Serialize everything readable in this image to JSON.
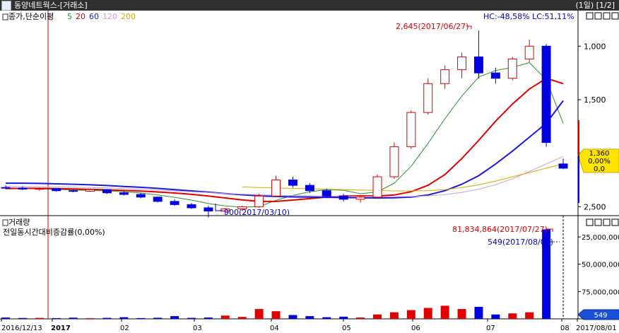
{
  "window": {
    "title": "동양네트웍스-[거래소]",
    "page_info": "(1일) [1/2]"
  },
  "price_panel": {
    "legend": {
      "label": "종가,단순이평",
      "ma_labels": [
        {
          "text": "5",
          "color": "#2f8f2f"
        },
        {
          "text": "20",
          "color": "#dd0000"
        },
        {
          "text": "60",
          "color": "#1a1ad8"
        },
        {
          "text": "120",
          "color": "#c8a0e0"
        },
        {
          "text": "200",
          "color": "#d8a800"
        }
      ]
    },
    "hc_lc": "HC:-48,58%  LC:51,11%",
    "high_annotation": "2,645(2017/06/27)",
    "low_annotation": "900(2017/03/10)",
    "current_box": [
      "1,360",
      "0,00%",
      "0,0"
    ],
    "y_ticks": [
      "2,500",
      "2,000",
      "1,500",
      "1,000"
    ]
  },
  "volume_panel": {
    "title": "거래량",
    "subtitle": "전일동시간대비증감률(0,00%)",
    "max_annotation": "81,834,864(2017/07/27)",
    "last_annotation": "549(2017/08/01)",
    "y_ticks": [
      "75,000,000",
      "50,000,000",
      "25,000,000"
    ],
    "current_box": "549"
  },
  "x_axis": {
    "labels": [
      "2016/12/13",
      "2017",
      "02",
      "03",
      "04",
      "05",
      "06",
      "07",
      "08",
      "2017/08/01"
    ]
  },
  "colors": {
    "up": "#e00000",
    "down": "#0000e0",
    "bg": "#ffffff",
    "axis": "#000000"
  },
  "chart_data": {
    "type": "candlestick",
    "price_axis": {
      "ylim": [
        950,
        2700
      ],
      "ticks": [
        1000,
        1500,
        2000,
        2500
      ]
    },
    "candles": [
      {
        "date": "2016-12-13",
        "open": 1180,
        "high": 1200,
        "low": 1165,
        "close": 1175
      },
      {
        "date": "2016-12-20",
        "open": 1175,
        "high": 1190,
        "low": 1155,
        "close": 1165
      },
      {
        "date": "2016-12-27",
        "open": 1165,
        "high": 1180,
        "low": 1150,
        "close": 1170
      },
      {
        "date": "2017-01-03",
        "open": 1170,
        "high": 1175,
        "low": 1140,
        "close": 1150
      },
      {
        "date": "2017-01-10",
        "open": 1150,
        "high": 1160,
        "low": 1135,
        "close": 1145
      },
      {
        "date": "2017-01-17",
        "open": 1145,
        "high": 1170,
        "low": 1140,
        "close": 1160
      },
      {
        "date": "2017-01-24",
        "open": 1160,
        "high": 1165,
        "low": 1120,
        "close": 1130
      },
      {
        "date": "2017-01-31",
        "open": 1130,
        "high": 1145,
        "low": 1105,
        "close": 1115
      },
      {
        "date": "2017-02-07",
        "open": 1115,
        "high": 1130,
        "low": 1080,
        "close": 1090
      },
      {
        "date": "2017-02-14",
        "open": 1090,
        "high": 1095,
        "low": 1040,
        "close": 1050
      },
      {
        "date": "2017-02-21",
        "open": 1050,
        "high": 1070,
        "low": 1010,
        "close": 1020
      },
      {
        "date": "2017-02-28",
        "open": 1020,
        "high": 1035,
        "low": 980,
        "close": 990
      },
      {
        "date": "2017-03-07",
        "open": 990,
        "high": 1010,
        "low": 900,
        "close": 960
      },
      {
        "date": "2017-03-14",
        "open": 960,
        "high": 990,
        "low": 930,
        "close": 980
      },
      {
        "date": "2017-03-21",
        "open": 980,
        "high": 1010,
        "low": 960,
        "close": 1000
      },
      {
        "date": "2017-03-28",
        "open": 1000,
        "high": 1120,
        "low": 990,
        "close": 1100
      },
      {
        "date": "2017-04-04",
        "open": 1100,
        "high": 1290,
        "low": 1090,
        "close": 1250
      },
      {
        "date": "2017-04-11",
        "open": 1250,
        "high": 1280,
        "low": 1180,
        "close": 1200
      },
      {
        "date": "2017-04-18",
        "open": 1200,
        "high": 1220,
        "low": 1130,
        "close": 1150
      },
      {
        "date": "2017-04-25",
        "open": 1150,
        "high": 1170,
        "low": 1080,
        "close": 1100
      },
      {
        "date": "2017-05-02",
        "open": 1100,
        "high": 1120,
        "low": 1050,
        "close": 1070
      },
      {
        "date": "2017-05-09",
        "open": 1070,
        "high": 1100,
        "low": 1040,
        "close": 1090
      },
      {
        "date": "2017-05-16",
        "open": 1090,
        "high": 1300,
        "low": 1080,
        "close": 1280
      },
      {
        "date": "2017-05-23",
        "open": 1280,
        "high": 1600,
        "low": 1260,
        "close": 1560
      },
      {
        "date": "2017-05-30",
        "open": 1560,
        "high": 1900,
        "low": 1540,
        "close": 1880
      },
      {
        "date": "2017-06-06",
        "open": 1880,
        "high": 2200,
        "low": 1860,
        "close": 2150
      },
      {
        "date": "2017-06-13",
        "open": 2150,
        "high": 2320,
        "low": 2100,
        "close": 2280
      },
      {
        "date": "2017-06-20",
        "open": 2280,
        "high": 2440,
        "low": 2200,
        "close": 2400
      },
      {
        "date": "2017-06-27",
        "open": 2400,
        "high": 2645,
        "low": 2200,
        "close": 2250
      },
      {
        "date": "2017-07-04",
        "open": 2250,
        "high": 2300,
        "low": 2150,
        "close": 2200
      },
      {
        "date": "2017-07-11",
        "open": 2200,
        "high": 2400,
        "low": 2180,
        "close": 2380
      },
      {
        "date": "2017-07-18",
        "open": 2380,
        "high": 2560,
        "low": 2350,
        "close": 2500
      },
      {
        "date": "2017-07-25",
        "open": 2500,
        "high": 2520,
        "low": 1560,
        "close": 1600
      },
      {
        "date": "2017-08-01",
        "open": 1400,
        "high": 1450,
        "low": 1350,
        "close": 1360
      }
    ],
    "moving_averages": [
      {
        "name": "5",
        "color": "#2f8f2f",
        "values": [
          1178,
          1172,
          1168,
          1162,
          1156,
          1152,
          1148,
          1140,
          1128,
          1110,
          1088,
          1062,
          1030,
          1008,
          996,
          1002,
          1060,
          1106,
          1140,
          1160,
          1154,
          1122,
          1138,
          1220,
          1378,
          1592,
          1822,
          2034,
          2212,
          2272,
          2302,
          2346,
          2186,
          1780
        ]
      },
      {
        "name": "20",
        "color": "#dd0000",
        "values": [
          1170,
          1172,
          1172,
          1170,
          1166,
          1162,
          1158,
          1152,
          1146,
          1138,
          1128,
          1116,
          1100,
          1082,
          1064,
          1050,
          1050,
          1062,
          1076,
          1090,
          1100,
          1102,
          1100,
          1110,
          1140,
          1200,
          1300,
          1450,
          1620,
          1800,
          1960,
          2100,
          2200,
          2150
        ]
      },
      {
        "name": "60",
        "color": "#1a1ad8",
        "values": [
          1220,
          1220,
          1218,
          1214,
          1210,
          1205,
          1198,
          1190,
          1182,
          1172,
          1160,
          1148,
          1136,
          1124,
          1112,
          1102,
          1096,
          1092,
          1090,
          1088,
          1086,
          1084,
          1082,
          1084,
          1090,
          1110,
          1150,
          1210,
          1290,
          1400,
          1520,
          1650,
          1780,
          1990
        ]
      },
      {
        "name": "120",
        "color": "#c8a0e0",
        "values": [
          1190,
          1190,
          1188,
          1186,
          1184,
          1180,
          1176,
          1170,
          1164,
          1156,
          1148,
          1140,
          1132,
          1124,
          1118,
          1112,
          1108,
          1104,
          1102,
          1100,
          1098,
          1096,
          1094,
          1094,
          1096,
          1102,
          1114,
          1134,
          1164,
          1206,
          1262,
          1330,
          1400,
          1470
        ]
      },
      {
        "name": "200",
        "color": "#d8a800",
        "values": [
          null,
          null,
          null,
          null,
          null,
          null,
          null,
          null,
          null,
          null,
          null,
          null,
          null,
          null,
          1185,
          1180,
          1176,
          1172,
          1168,
          1164,
          1160,
          1156,
          1152,
          1148,
          1148,
          1150,
          1160,
          1180,
          1205,
          1240,
          1280,
          1320,
          1360,
          1400
        ]
      }
    ],
    "volume": {
      "ylim": [
        0,
        88000000
      ],
      "ticks": [
        25000000,
        50000000,
        75000000
      ],
      "values": [
        1200000,
        800000,
        900000,
        700000,
        1100000,
        600000,
        900000,
        1500000,
        700000,
        1000000,
        2500000,
        900000,
        1200000,
        3000000,
        1800000,
        9000000,
        7000000,
        3500000,
        2500000,
        1500000,
        2000000,
        1200000,
        4000000,
        6000000,
        8000000,
        10000000,
        12000000,
        9000000,
        11000000,
        4000000,
        5000000,
        6000000,
        81834864,
        549
      ]
    }
  }
}
